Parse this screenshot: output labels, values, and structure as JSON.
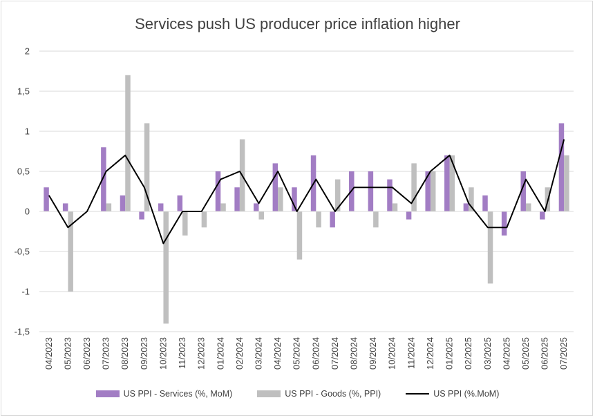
{
  "chart_data": {
    "type": "bar",
    "title": "Services push US producer price inflation higher",
    "categories": [
      "04/2023",
      "05/2023",
      "06/2023",
      "07/2023",
      "08/2023",
      "09/2023",
      "10/2023",
      "11/2023",
      "12/2023",
      "01/2024",
      "02/2024",
      "03/2024",
      "04/2024",
      "05/2024",
      "06/2024",
      "07/2024",
      "08/2024",
      "09/2024",
      "10/2024",
      "11/2024",
      "12/2024",
      "01/2025",
      "02/2025",
      "03/2025",
      "04/2025",
      "05/2025",
      "06/2025",
      "07/2025"
    ],
    "ylim": [
      -1.5,
      2
    ],
    "yticks": [
      "2",
      "1,5",
      "1",
      "0,5",
      "0",
      "-0,5",
      "-1",
      "-1,5"
    ],
    "grid": "horizontal",
    "legend_position": "bottom",
    "series": [
      {
        "name": "US PPI - Services (%, MoM)",
        "kind": "bar",
        "color": "#a27dc4",
        "values": [
          0.3,
          0.1,
          0,
          0.8,
          0.2,
          -0.1,
          0.1,
          0.2,
          0,
          0.5,
          0.3,
          0.1,
          0.6,
          0.3,
          0.7,
          -0.2,
          0.5,
          0.5,
          0.4,
          -0.1,
          0.5,
          0.7,
          0.1,
          0.2,
          -0.3,
          0.5,
          -0.1,
          1.1
        ]
      },
      {
        "name": "US PPI - Goods (%, PPI)",
        "kind": "bar",
        "color": "#bfbfbf",
        "values": [
          0,
          -1.0,
          0,
          0.1,
          1.7,
          1.1,
          -1.4,
          -0.3,
          -0.2,
          0.1,
          0.9,
          -0.1,
          0.3,
          -0.6,
          -0.2,
          0.4,
          0,
          -0.2,
          0.1,
          0.6,
          0.5,
          0.7,
          0.3,
          -0.9,
          0,
          0.1,
          0.3,
          0.7
        ]
      },
      {
        "name": "US PPI (%.MoM)",
        "kind": "line",
        "color": "#000000",
        "values": [
          0.2,
          -0.2,
          0,
          0.5,
          0.7,
          0.3,
          -0.4,
          0,
          0,
          0.4,
          0.5,
          0.1,
          0.5,
          0,
          0.4,
          0,
          0.3,
          0.3,
          0.3,
          0.1,
          0.5,
          0.7,
          0.1,
          -0.2,
          -0.2,
          0.4,
          0,
          0.9
        ]
      }
    ]
  }
}
